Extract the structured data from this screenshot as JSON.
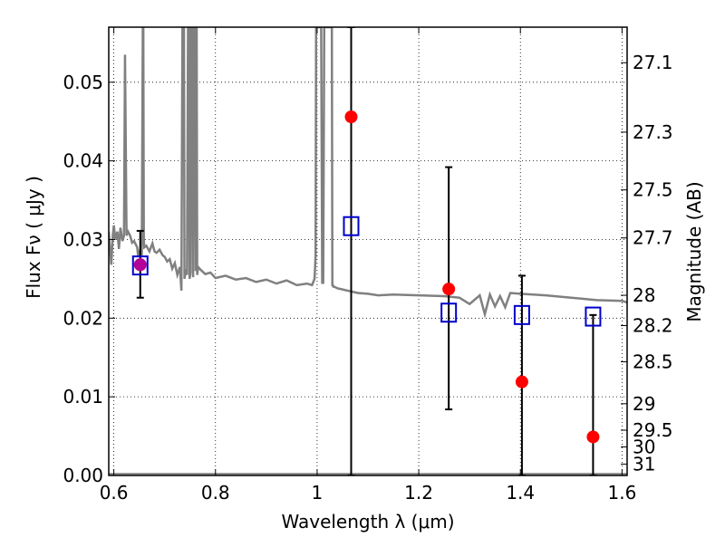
{
  "chart_data": {
    "type": "scatter",
    "xlabel": "Wavelength  λ (μm)",
    "ylabel_left": "Flux  Fν  ( μJy )",
    "ylabel_right": "Magnitude (AB)",
    "xlim": [
      0.59,
      1.61
    ],
    "ylim": [
      0.0,
      0.057
    ],
    "x_ticks": [
      0.6,
      0.8,
      1.0,
      1.2,
      1.4,
      1.6
    ],
    "x_tick_labels": [
      "0.6",
      "0.8",
      "1",
      "1.2",
      "1.4",
      "1.6"
    ],
    "y_ticks": [
      0.0,
      0.01,
      0.02,
      0.03,
      0.04,
      0.05
    ],
    "y_tick_labels": [
      "0.00",
      "0.01",
      "0.02",
      "0.03",
      "0.04",
      "0.05"
    ],
    "mag_tick_labels": [
      "27.1",
      "27.3",
      "27.5",
      "27.7",
      "28",
      "28.2",
      "28.5",
      "29",
      "29.5",
      "30",
      "31"
    ],
    "grid": true,
    "colors": {
      "template": "#808080",
      "observed": "#ff0000",
      "model": "#0000cc",
      "errorbar": "#000000"
    },
    "series": [
      {
        "kind": "observed-points",
        "x": [
          0.652,
          1.067,
          1.259,
          1.403,
          1.543
        ],
        "y": [
          0.0268,
          0.0456,
          0.0237,
          0.0119,
          0.0049
        ]
      },
      {
        "kind": "error-bars",
        "x": [
          0.652,
          1.067,
          1.259,
          1.403,
          1.543
        ],
        "y_low": [
          0.0226,
          0.0,
          0.0084,
          0.0,
          0.0
        ],
        "y_high": [
          0.0311,
          0.057,
          0.0392,
          0.0254,
          0.0204
        ]
      },
      {
        "kind": "model-photometry",
        "x": [
          0.652,
          1.067,
          1.259,
          1.403,
          1.543
        ],
        "y": [
          0.0267,
          0.0317,
          0.0207,
          0.0204,
          0.0202
        ]
      },
      {
        "kind": "template-spectrum",
        "x": [
          0.59,
          0.595,
          0.598,
          0.6,
          0.603,
          0.607,
          0.61,
          0.613,
          0.617,
          0.62,
          0.622,
          0.625,
          0.628,
          0.632,
          0.636,
          0.64,
          0.646,
          0.648,
          0.651,
          0.655,
          0.657,
          0.658,
          0.659,
          0.66,
          0.664,
          0.67,
          0.676,
          0.68,
          0.684,
          0.69,
          0.696,
          0.7,
          0.705,
          0.71,
          0.715,
          0.72,
          0.725,
          0.73,
          0.733,
          0.735,
          0.736,
          0.737,
          0.738,
          0.739,
          0.742,
          0.744,
          0.746,
          0.747,
          0.748,
          0.749,
          0.751,
          0.752,
          0.753,
          0.754,
          0.756,
          0.757,
          0.758,
          0.759,
          0.761,
          0.762,
          0.763,
          0.764,
          0.766,
          0.77,
          0.78,
          0.79,
          0.8,
          0.82,
          0.84,
          0.86,
          0.88,
          0.9,
          0.92,
          0.94,
          0.96,
          0.98,
          0.99,
          0.995,
          0.997,
          0.998,
          0.999,
          1.0,
          1.003,
          1.006,
          1.008,
          1.01,
          1.012,
          1.014,
          1.016,
          1.02,
          1.025,
          1.028,
          1.029,
          1.03,
          1.031,
          1.032,
          1.033,
          1.034,
          1.04,
          1.06,
          1.08,
          1.1,
          1.12,
          1.15,
          1.2,
          1.25,
          1.28,
          1.3,
          1.32,
          1.33,
          1.34,
          1.35,
          1.36,
          1.37,
          1.38,
          1.4,
          1.45,
          1.5,
          1.55,
          1.6,
          1.61
        ],
        "y": [
          0.031,
          0.0268,
          0.0305,
          0.0318,
          0.03,
          0.031,
          0.0288,
          0.0315,
          0.0298,
          0.0305,
          0.0535,
          0.0305,
          0.031,
          0.0305,
          0.0296,
          0.0298,
          0.029,
          0.0278,
          0.0285,
          0.028,
          0.057,
          0.057,
          0.03,
          0.029,
          0.0292,
          0.0285,
          0.0295,
          0.0285,
          0.0283,
          0.0287,
          0.028,
          0.0278,
          0.0272,
          0.0275,
          0.0263,
          0.027,
          0.0255,
          0.0265,
          0.0235,
          0.057,
          0.057,
          0.057,
          0.057,
          0.025,
          0.0262,
          0.0255,
          0.057,
          0.057,
          0.057,
          0.025,
          0.0258,
          0.057,
          0.057,
          0.057,
          0.0252,
          0.057,
          0.057,
          0.057,
          0.026,
          0.057,
          0.057,
          0.0255,
          0.0265,
          0.0262,
          0.0256,
          0.0258,
          0.0251,
          0.0254,
          0.0249,
          0.0251,
          0.0246,
          0.0249,
          0.0244,
          0.0248,
          0.0242,
          0.0244,
          0.0242,
          0.025,
          0.028,
          0.057,
          0.057,
          0.057,
          0.057,
          0.057,
          0.057,
          0.0245,
          0.0245,
          0.057,
          0.057,
          0.057,
          0.057,
          0.057,
          0.057,
          0.0242,
          0.0242,
          0.024,
          0.024,
          0.024,
          0.0238,
          0.0235,
          0.0232,
          0.0231,
          0.0229,
          0.023,
          0.0229,
          0.0228,
          0.0226,
          0.0218,
          0.0229,
          0.0205,
          0.023,
          0.0215,
          0.0228,
          0.0214,
          0.0232,
          0.0231,
          0.0229,
          0.0226,
          0.0223,
          0.0222,
          0.022
        ]
      },
      {
        "kind": "baseline",
        "x": [
          0.59,
          1.61
        ],
        "y": [
          0.0002,
          0.0002
        ]
      }
    ]
  }
}
